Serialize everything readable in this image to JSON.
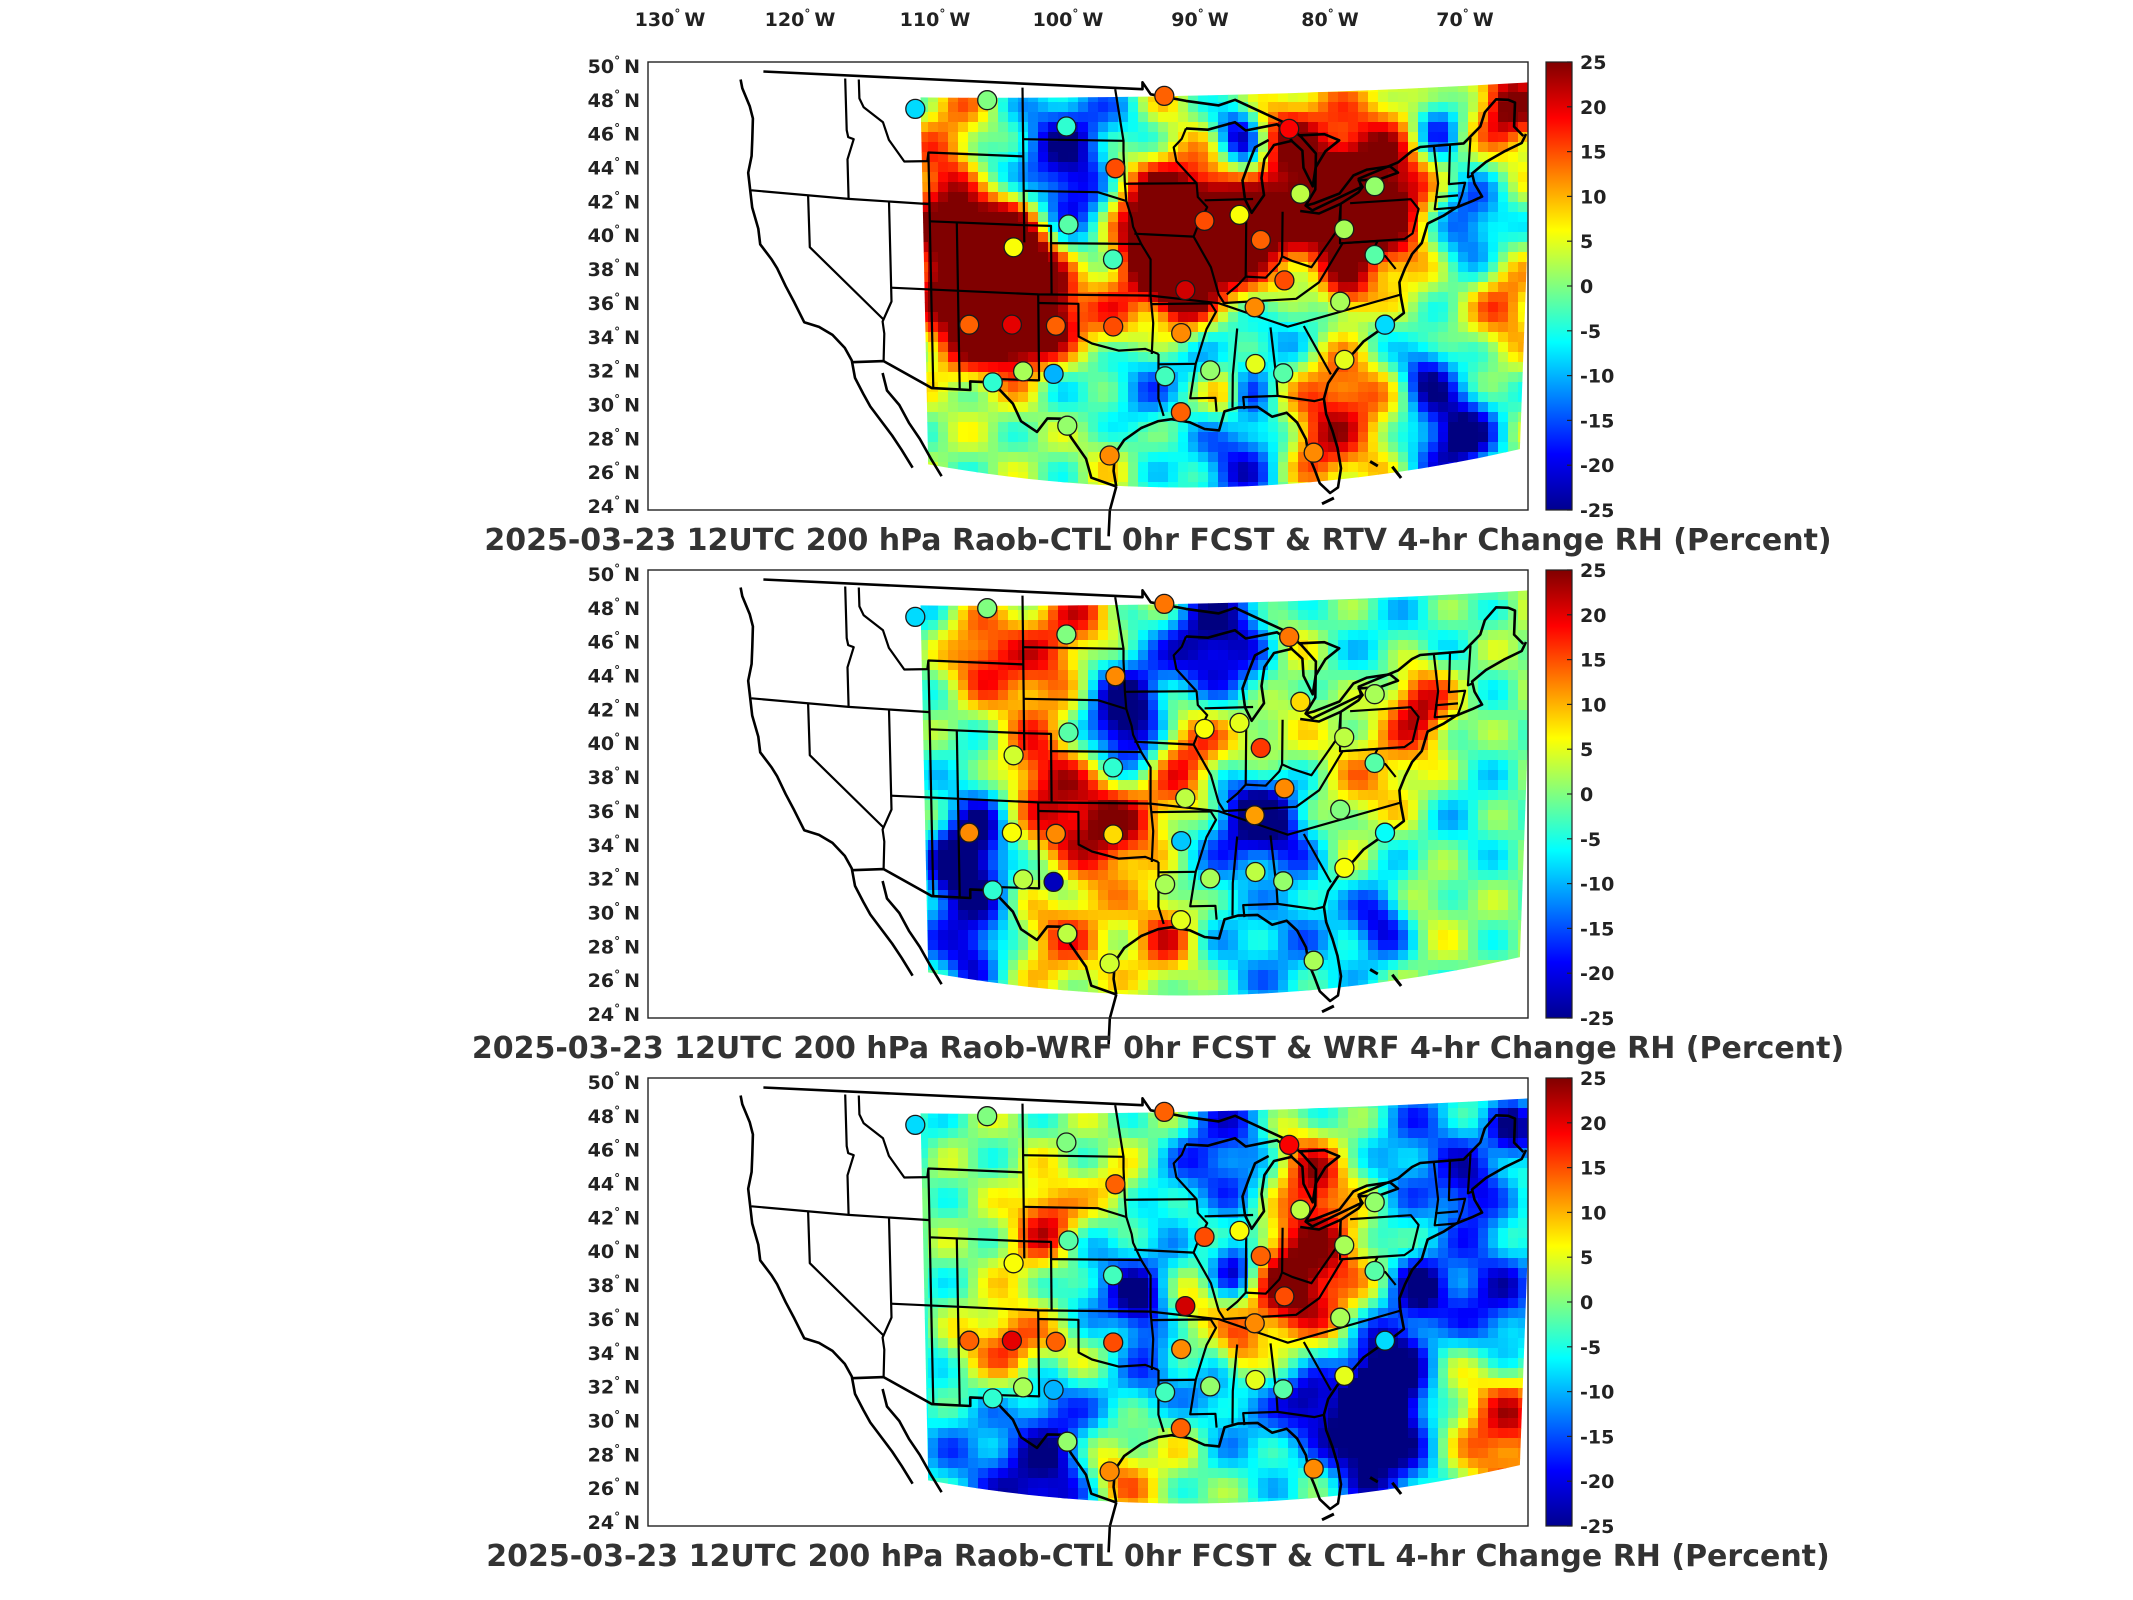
{
  "lon_labels": [
    {
      "deg": "130",
      "hemi": "W"
    },
    {
      "deg": "120",
      "hemi": "W"
    },
    {
      "deg": "110",
      "hemi": "W"
    },
    {
      "deg": "100",
      "hemi": "W"
    },
    {
      "deg": "90",
      "hemi": "W"
    },
    {
      "deg": "80",
      "hemi": "W"
    },
    {
      "deg": "70",
      "hemi": "W"
    }
  ],
  "lat_labels": [
    {
      "deg": "50",
      "hemi": "N"
    },
    {
      "deg": "48",
      "hemi": "N"
    },
    {
      "deg": "46",
      "hemi": "N"
    },
    {
      "deg": "44",
      "hemi": "N"
    },
    {
      "deg": "42",
      "hemi": "N"
    },
    {
      "deg": "40",
      "hemi": "N"
    },
    {
      "deg": "38",
      "hemi": "N"
    },
    {
      "deg": "36",
      "hemi": "N"
    },
    {
      "deg": "34",
      "hemi": "N"
    },
    {
      "deg": "32",
      "hemi": "N"
    },
    {
      "deg": "30",
      "hemi": "N"
    },
    {
      "deg": "28",
      "hemi": "N"
    },
    {
      "deg": "26",
      "hemi": "N"
    },
    {
      "deg": "24",
      "hemi": "N"
    }
  ],
  "colorbar": {
    "ticks": [
      "25",
      "20",
      "15",
      "10",
      "5",
      "0",
      "-5",
      "-10",
      "-15",
      "-20",
      "-25"
    ],
    "min": -25,
    "max": 25,
    "colormap": "jet",
    "colors": [
      "#00008f",
      "#0000ff",
      "#0080ff",
      "#00ffff",
      "#80ff80",
      "#ffff00",
      "#ff8000",
      "#ff0000",
      "#800000"
    ]
  },
  "panels": [
    {
      "title": "2025-03-23 12UTC 200 hPa Raob-CTL 0hr FCST & RTV 4-hr Change RH (Percent)",
      "field": "RTV 4-hr Change RH",
      "seed": 11,
      "stations": [
        {
          "lon": -111.9,
          "lat": 47.5,
          "value": -8
        },
        {
          "lon": -106.6,
          "lat": 48.2,
          "value": 0
        },
        {
          "lon": -100.8,
          "lat": 46.8,
          "value": -4
        },
        {
          "lon": -93.6,
          "lat": 48.6,
          "value": 14
        },
        {
          "lon": -97.2,
          "lat": 44.4,
          "value": 15
        },
        {
          "lon": -84.4,
          "lat": 46.5,
          "value": 19
        },
        {
          "lon": -83.5,
          "lat": 42.7,
          "value": 3
        },
        {
          "lon": -78.0,
          "lat": 42.9,
          "value": 1
        },
        {
          "lon": -88.0,
          "lat": 41.6,
          "value": 6
        },
        {
          "lon": -90.6,
          "lat": 41.3,
          "value": 15
        },
        {
          "lon": -86.4,
          "lat": 40.1,
          "value": 14
        },
        {
          "lon": -80.2,
          "lat": 40.5,
          "value": 2
        },
        {
          "lon": -100.7,
          "lat": 41.1,
          "value": -2
        },
        {
          "lon": -104.8,
          "lat": 39.7,
          "value": 6
        },
        {
          "lon": -97.4,
          "lat": 39.1,
          "value": -3
        },
        {
          "lon": -92.0,
          "lat": 37.3,
          "value": 21
        },
        {
          "lon": -84.6,
          "lat": 37.7,
          "value": 15
        },
        {
          "lon": -77.9,
          "lat": 38.9,
          "value": -2
        },
        {
          "lon": -80.4,
          "lat": 36.3,
          "value": 2
        },
        {
          "lon": -108.2,
          "lat": 35.1,
          "value": 14
        },
        {
          "lon": -105.0,
          "lat": 35.2,
          "value": 20
        },
        {
          "lon": -101.7,
          "lat": 35.2,
          "value": 14
        },
        {
          "lon": -97.4,
          "lat": 35.2,
          "value": 15
        },
        {
          "lon": -92.3,
          "lat": 34.8,
          "value": 12
        },
        {
          "lon": -86.8,
          "lat": 36.2,
          "value": 12
        },
        {
          "lon": -77.0,
          "lat": 34.8,
          "value": -8
        },
        {
          "lon": -101.9,
          "lat": 32.4,
          "value": -10
        },
        {
          "lon": -104.2,
          "lat": 32.5,
          "value": 2
        },
        {
          "lon": -106.5,
          "lat": 31.8,
          "value": -4
        },
        {
          "lon": -93.5,
          "lat": 32.3,
          "value": -3
        },
        {
          "lon": -90.1,
          "lat": 32.6,
          "value": 1
        },
        {
          "lon": -86.7,
          "lat": 32.9,
          "value": 5
        },
        {
          "lon": -84.6,
          "lat": 32.3,
          "value": -2
        },
        {
          "lon": -80.0,
          "lat": 32.9,
          "value": 5
        },
        {
          "lon": -92.3,
          "lat": 30.2,
          "value": 14
        },
        {
          "lon": -97.7,
          "lat": 27.7,
          "value": 12
        },
        {
          "lon": -100.9,
          "lat": 29.4,
          "value": 1
        },
        {
          "lon": -82.2,
          "lat": 27.6,
          "value": 12
        }
      ]
    },
    {
      "title": "2025-03-23 12UTC 200 hPa Raob-WRF 0hr FCST & WRF 4-hr Change RH (Percent)",
      "field": "WRF 4-hr Change RH",
      "seed": 29,
      "stations": [
        {
          "lon": -111.9,
          "lat": 47.5,
          "value": -8
        },
        {
          "lon": -106.6,
          "lat": 48.2,
          "value": 0
        },
        {
          "lon": -100.8,
          "lat": 46.8,
          "value": 0
        },
        {
          "lon": -93.6,
          "lat": 48.6,
          "value": 13
        },
        {
          "lon": -97.2,
          "lat": 44.4,
          "value": 12
        },
        {
          "lon": -84.4,
          "lat": 46.5,
          "value": 13
        },
        {
          "lon": -83.5,
          "lat": 42.7,
          "value": 8
        },
        {
          "lon": -78.0,
          "lat": 42.9,
          "value": 2
        },
        {
          "lon": -88.0,
          "lat": 41.6,
          "value": 5
        },
        {
          "lon": -90.6,
          "lat": 41.3,
          "value": 6
        },
        {
          "lon": -86.4,
          "lat": 40.1,
          "value": 16
        },
        {
          "lon": -80.2,
          "lat": 40.5,
          "value": 3
        },
        {
          "lon": -100.7,
          "lat": 41.1,
          "value": -2
        },
        {
          "lon": -104.8,
          "lat": 39.7,
          "value": 4
        },
        {
          "lon": -97.4,
          "lat": 39.1,
          "value": -4
        },
        {
          "lon": -92.0,
          "lat": 37.3,
          "value": 3
        },
        {
          "lon": -84.6,
          "lat": 37.7,
          "value": 12
        },
        {
          "lon": -77.9,
          "lat": 38.9,
          "value": -2
        },
        {
          "lon": -80.4,
          "lat": 36.3,
          "value": 0
        },
        {
          "lon": -108.2,
          "lat": 35.1,
          "value": 12
        },
        {
          "lon": -105.0,
          "lat": 35.2,
          "value": 6
        },
        {
          "lon": -101.7,
          "lat": 35.2,
          "value": 12
        },
        {
          "lon": -97.4,
          "lat": 35.2,
          "value": 8
        },
        {
          "lon": -92.3,
          "lat": 34.8,
          "value": -9
        },
        {
          "lon": -86.8,
          "lat": 36.2,
          "value": 11
        },
        {
          "lon": -77.0,
          "lat": 34.8,
          "value": -6
        },
        {
          "lon": -101.9,
          "lat": 32.4,
          "value": -22
        },
        {
          "lon": -104.2,
          "lat": 32.5,
          "value": 3
        },
        {
          "lon": -106.5,
          "lat": 31.8,
          "value": -4
        },
        {
          "lon": -93.5,
          "lat": 32.3,
          "value": 2
        },
        {
          "lon": -90.1,
          "lat": 32.6,
          "value": 2
        },
        {
          "lon": -86.7,
          "lat": 32.9,
          "value": 3
        },
        {
          "lon": -84.6,
          "lat": 32.3,
          "value": 1
        },
        {
          "lon": -80.0,
          "lat": 32.9,
          "value": 6
        },
        {
          "lon": -92.3,
          "lat": 30.2,
          "value": 5
        },
        {
          "lon": -97.7,
          "lat": 27.7,
          "value": 4
        },
        {
          "lon": -100.9,
          "lat": 29.4,
          "value": 3
        },
        {
          "lon": -82.2,
          "lat": 27.6,
          "value": 2
        }
      ]
    },
    {
      "title": "2025-03-23 12UTC 200 hPa Raob-CTL 0hr FCST & CTL 4-hr Change RH (Percent)",
      "field": "CTL 4-hr Change RH",
      "seed": 47,
      "stations": [
        {
          "lon": -111.9,
          "lat": 47.5,
          "value": -8
        },
        {
          "lon": -106.6,
          "lat": 48.2,
          "value": 0
        },
        {
          "lon": -100.8,
          "lat": 46.8,
          "value": 0
        },
        {
          "lon": -93.6,
          "lat": 48.6,
          "value": 14
        },
        {
          "lon": -97.2,
          "lat": 44.4,
          "value": 14
        },
        {
          "lon": -84.4,
          "lat": 46.5,
          "value": 19
        },
        {
          "lon": -83.5,
          "lat": 42.7,
          "value": 3
        },
        {
          "lon": -78.0,
          "lat": 42.9,
          "value": 1
        },
        {
          "lon": -88.0,
          "lat": 41.6,
          "value": 6
        },
        {
          "lon": -90.6,
          "lat": 41.3,
          "value": 15
        },
        {
          "lon": -86.4,
          "lat": 40.1,
          "value": 14
        },
        {
          "lon": -80.2,
          "lat": 40.5,
          "value": 2
        },
        {
          "lon": -100.7,
          "lat": 41.1,
          "value": -2
        },
        {
          "lon": -104.8,
          "lat": 39.7,
          "value": 6
        },
        {
          "lon": -97.4,
          "lat": 39.1,
          "value": -3
        },
        {
          "lon": -92.0,
          "lat": 37.3,
          "value": 21
        },
        {
          "lon": -84.6,
          "lat": 37.7,
          "value": 15
        },
        {
          "lon": -77.9,
          "lat": 38.9,
          "value": -2
        },
        {
          "lon": -80.4,
          "lat": 36.3,
          "value": 2
        },
        {
          "lon": -108.2,
          "lat": 35.1,
          "value": 14
        },
        {
          "lon": -105.0,
          "lat": 35.2,
          "value": 20
        },
        {
          "lon": -101.7,
          "lat": 35.2,
          "value": 14
        },
        {
          "lon": -97.4,
          "lat": 35.2,
          "value": 15
        },
        {
          "lon": -92.3,
          "lat": 34.8,
          "value": 12
        },
        {
          "lon": -86.8,
          "lat": 36.2,
          "value": 12
        },
        {
          "lon": -77.0,
          "lat": 34.8,
          "value": -8
        },
        {
          "lon": -101.9,
          "lat": 32.4,
          "value": -10
        },
        {
          "lon": -104.2,
          "lat": 32.5,
          "value": 2
        },
        {
          "lon": -106.5,
          "lat": 31.8,
          "value": -4
        },
        {
          "lon": -93.5,
          "lat": 32.3,
          "value": -3
        },
        {
          "lon": -90.1,
          "lat": 32.6,
          "value": 1
        },
        {
          "lon": -86.7,
          "lat": 32.9,
          "value": 5
        },
        {
          "lon": -84.6,
          "lat": 32.3,
          "value": -2
        },
        {
          "lon": -80.0,
          "lat": 32.9,
          "value": 5
        },
        {
          "lon": -92.3,
          "lat": 30.2,
          "value": 14
        },
        {
          "lon": -97.7,
          "lat": 27.7,
          "value": 12
        },
        {
          "lon": -100.9,
          "lat": 29.4,
          "value": 1
        },
        {
          "lon": -82.2,
          "lat": 27.6,
          "value": 12
        }
      ]
    }
  ]
}
